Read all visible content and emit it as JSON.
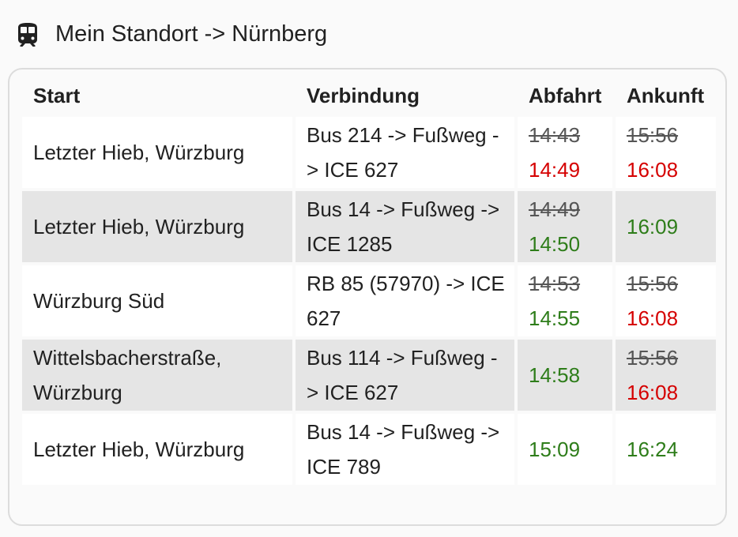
{
  "header": {
    "title": "Mein Standort -> Nürnberg",
    "icon": "train-icon"
  },
  "colors": {
    "late": "#d50000",
    "ontime": "#2e7d1a",
    "scheduled_struck": "#555555",
    "row_alt": "#e5e5e5"
  },
  "table": {
    "columns": [
      "Start",
      "Verbindung",
      "Abfahrt",
      "Ankunft"
    ],
    "rows": [
      {
        "start": "Letzter Hieb, Würzburg",
        "connection": "Bus 214 -> Fußweg -> ICE 627",
        "departure_scheduled": "14:43",
        "departure_actual": "14:49",
        "departure_status": "late",
        "arrival_scheduled": "15:56",
        "arrival_actual": "16:08",
        "arrival_status": "late"
      },
      {
        "start": "Letzter Hieb, Würzburg",
        "connection": "Bus 14 -> Fußweg -> ICE 1285",
        "departure_scheduled": "14:49",
        "departure_actual": "14:50",
        "departure_status": "ontime",
        "arrival_scheduled": "",
        "arrival_actual": "16:09",
        "arrival_status": "ontime"
      },
      {
        "start": "Würzburg Süd",
        "connection": "RB 85 (57970) -> ICE 627",
        "departure_scheduled": "14:53",
        "departure_actual": "14:55",
        "departure_status": "ontime",
        "arrival_scheduled": "15:56",
        "arrival_actual": "16:08",
        "arrival_status": "late"
      },
      {
        "start": "Wittelsbacherstraße, Würzburg",
        "connection": "Bus 114 -> Fußweg -> ICE 627",
        "departure_scheduled": "",
        "departure_actual": "14:58",
        "departure_status": "ontime",
        "arrival_scheduled": "15:56",
        "arrival_actual": "16:08",
        "arrival_status": "late"
      },
      {
        "start": "Letzter Hieb, Würzburg",
        "connection": "Bus 14 -> Fußweg -> ICE 789",
        "departure_scheduled": "",
        "departure_actual": "15:09",
        "departure_status": "ontime",
        "arrival_scheduled": "",
        "arrival_actual": "16:24",
        "arrival_status": "ontime"
      }
    ]
  }
}
